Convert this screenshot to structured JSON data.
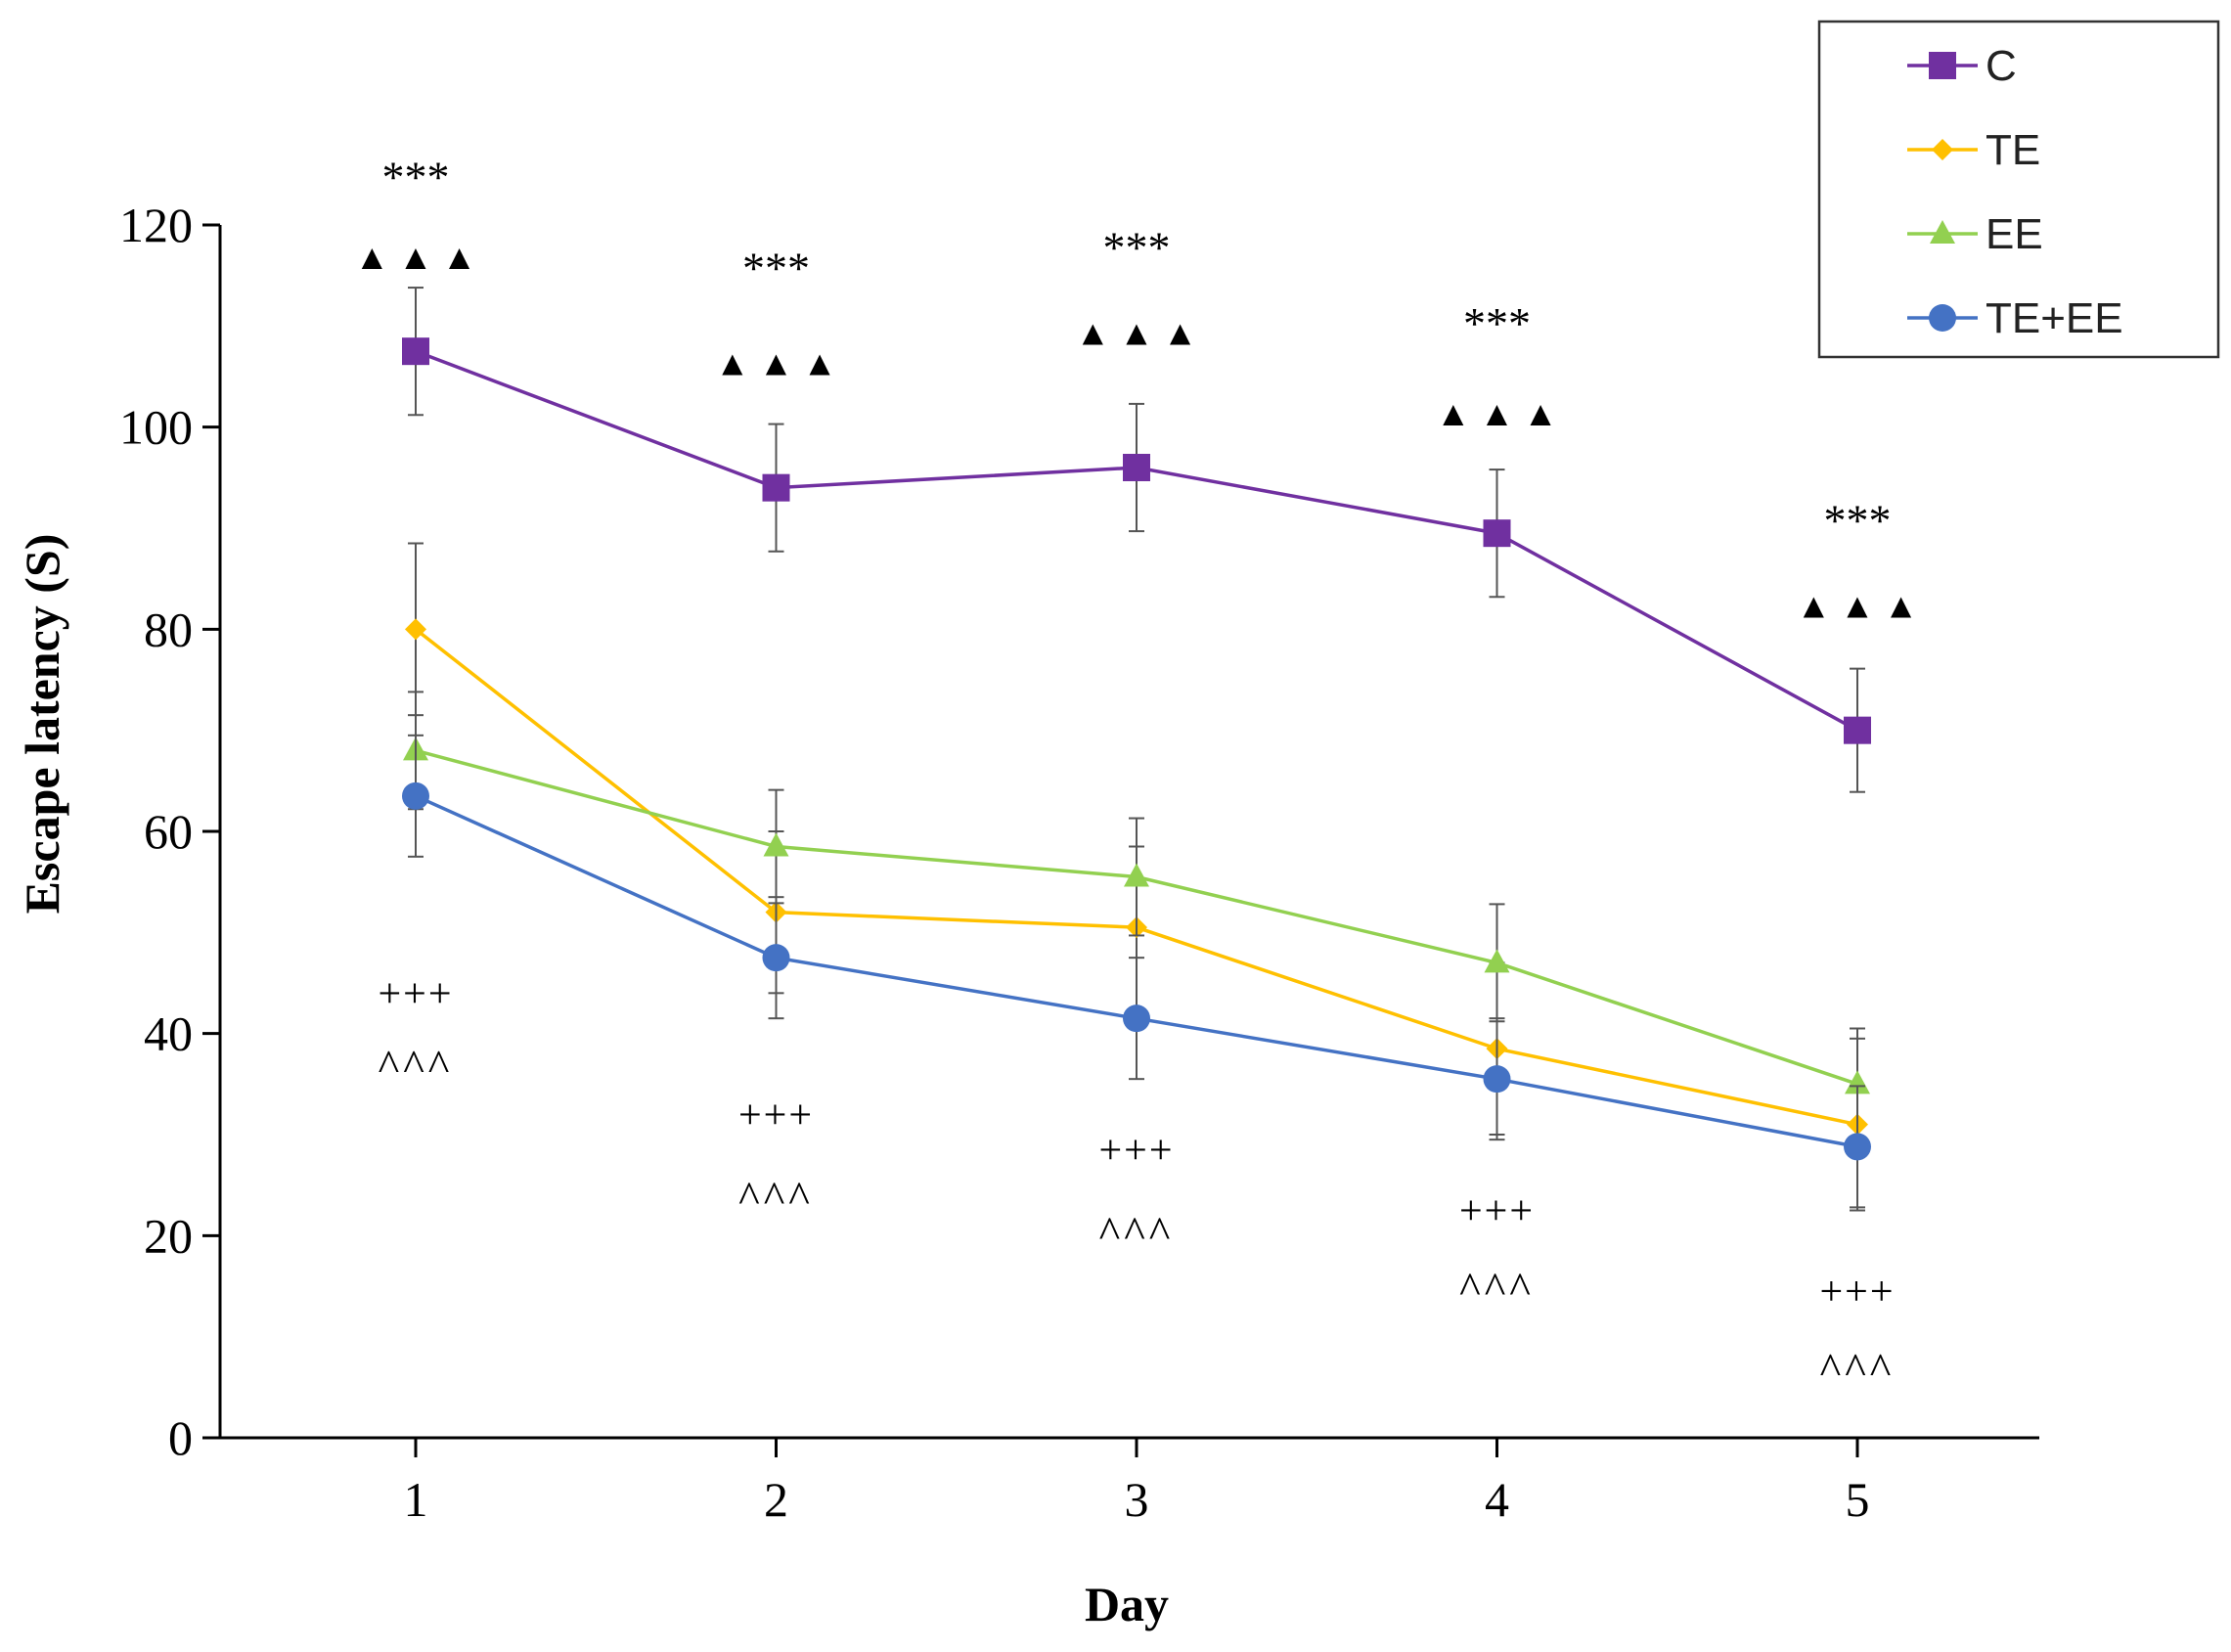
{
  "chart_data": {
    "type": "line",
    "title": "",
    "xlabel": "Day",
    "ylabel": "Escape latency (S)",
    "x": [
      1,
      2,
      3,
      4,
      5
    ],
    "x_ticks": [
      "1",
      "2",
      "3",
      "4",
      "5"
    ],
    "ylim": [
      0,
      120
    ],
    "y_ticks": [
      "0",
      "20",
      "40",
      "60",
      "80",
      "100",
      "120"
    ],
    "grid": false,
    "legend_position": "top-right",
    "series": [
      {
        "name": "C",
        "color": "#7030A0",
        "marker": "square",
        "values": [
          107.5,
          94,
          96,
          89.5,
          70
        ],
        "errors": [
          6.3,
          6.3,
          6.3,
          6.3,
          6.1
        ]
      },
      {
        "name": "TE",
        "color": "#FFC000",
        "marker": "diamond",
        "values": [
          80,
          52,
          50.5,
          38.5,
          31
        ],
        "errors": [
          8.5,
          8,
          8,
          8.5,
          8.5
        ]
      },
      {
        "name": "EE",
        "color": "#92D050",
        "marker": "triangle",
        "values": [
          68,
          58.5,
          55.5,
          47,
          35
        ],
        "errors": [
          5.8,
          5.6,
          5.8,
          5.8,
          5.5
        ]
      },
      {
        "name": "TE+EE",
        "color": "#4472C4",
        "marker": "circle",
        "values": [
          63.5,
          47.5,
          41.5,
          35.5,
          28.8
        ],
        "errors": [
          6,
          6,
          6,
          6,
          6
        ]
      }
    ],
    "annotations": {
      "upper_stars": [
        "***",
        "***",
        "***",
        "***",
        "***"
      ],
      "upper_triangles": [
        "▲ ▲ ▲",
        "▲ ▲ ▲",
        "▲ ▲ ▲",
        "▲ ▲ ▲",
        "▲ ▲ ▲"
      ],
      "lower_plus": [
        "+++",
        "+++",
        "+++",
        "+++",
        "+++"
      ],
      "lower_caret": [
        "^^^",
        "^^^",
        "^^^",
        "^^^",
        "^^^"
      ],
      "upper_stars_y": [
        125,
        116,
        118,
        110.5,
        91
      ],
      "upper_triangles_y": [
        117,
        106.5,
        109.5,
        101.5,
        82.5
      ],
      "lower_plus_y": [
        44,
        32,
        28.5,
        22.5,
        14.5
      ],
      "lower_caret_y": [
        37.5,
        24.5,
        21,
        15.5,
        7.5
      ]
    }
  }
}
